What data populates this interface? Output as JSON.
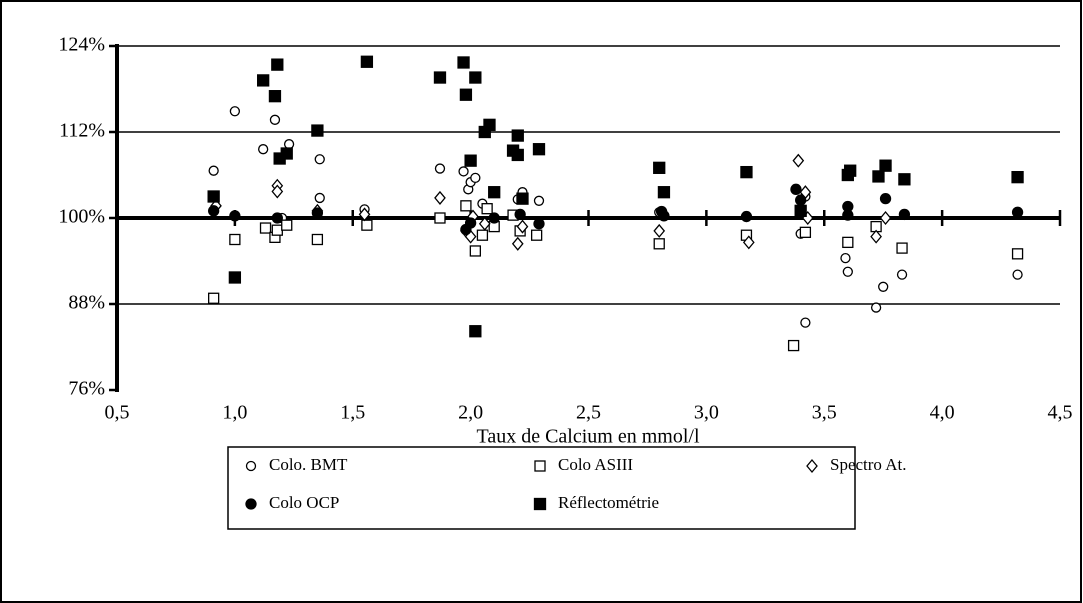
{
  "chart_data": {
    "type": "scatter",
    "xlabel": "Taux de Calcium en mmol/l",
    "xlim": [
      0.5,
      4.5
    ],
    "xticks": [
      {
        "value": 0.5,
        "label": "0,5"
      },
      {
        "value": 1,
        "label": "1,0"
      },
      {
        "value": 1.5,
        "label": "1,5"
      },
      {
        "value": 2,
        "label": "2,0"
      },
      {
        "value": 2.5,
        "label": "2,5"
      },
      {
        "value": 3,
        "label": "3,0"
      },
      {
        "value": 3.5,
        "label": "3,5"
      },
      {
        "value": 4,
        "label": "4,0"
      },
      {
        "value": 4.5,
        "label": "4,5"
      }
    ],
    "ylim": [
      76,
      124
    ],
    "yticks": [
      {
        "value": 76,
        "label": "76%"
      },
      {
        "value": 88,
        "label": "88%"
      },
      {
        "value": 100,
        "label": "100%"
      },
      {
        "value": 112,
        "label": "112%"
      },
      {
        "value": 124,
        "label": "124%"
      }
    ],
    "grid": true,
    "legend": "bottom",
    "series": [
      {
        "name": "Colo. BMT",
        "marker": "circle",
        "color": "#000000",
        "fill": "#ffffff",
        "x": [
          0.91,
          1.0,
          1.12,
          1.17,
          1.2,
          1.23,
          1.36,
          1.36,
          1.35,
          1.55,
          1.87,
          1.97,
          1.99,
          2.0,
          2.02,
          2.05,
          2.2,
          2.22,
          2.29,
          2.8,
          3.38,
          3.4,
          3.42,
          3.42,
          3.59,
          3.6,
          3.72,
          3.75,
          3.83,
          4.32
        ],
        "values": [
          106.6,
          114.9,
          109.6,
          113.7,
          100,
          110.3,
          108.2,
          102.8,
          100.5,
          101.2,
          106.9,
          106.5,
          104,
          105,
          105.6,
          102,
          102.6,
          103.6,
          102.4,
          100.8,
          104,
          97.8,
          85.4,
          103,
          94.4,
          92.5,
          87.5,
          90.4,
          92.1,
          92.1
        ]
      },
      {
        "name": "Colo ASIII",
        "marker": "square",
        "color": "#000000",
        "fill": "#ffffff",
        "x": [
          0.91,
          1.0,
          1.13,
          1.17,
          1.18,
          1.22,
          1.35,
          1.56,
          1.87,
          1.98,
          2.02,
          2.05,
          2.07,
          2.1,
          2.18,
          2.21,
          2.28,
          2.8,
          3.17,
          3.37,
          3.42,
          3.6,
          3.72,
          3.83,
          4.32
        ],
        "values": [
          88.8,
          97,
          98.6,
          97.3,
          98.3,
          99,
          97,
          99,
          100,
          101.7,
          95.4,
          97.6,
          101.3,
          98.8,
          100.4,
          98.2,
          97.6,
          96.4,
          97.6,
          82.2,
          98,
          96.6,
          98.8,
          95.8,
          95
        ]
      },
      {
        "name": "Spectro At.",
        "marker": "diamond",
        "color": "#000000",
        "fill": "#ffffff",
        "x": [
          0.92,
          1.18,
          1.18,
          1.35,
          1.55,
          1.87,
          1.98,
          2.0,
          2.01,
          2.06,
          2.2,
          2.22,
          2.8,
          3.18,
          3.39,
          3.42,
          3.43,
          3.72,
          3.76
        ],
        "values": [
          101.7,
          104.5,
          103.7,
          101,
          100.5,
          102.8,
          98.2,
          97.4,
          100.2,
          99.2,
          96.4,
          98.8,
          98.2,
          96.6,
          108,
          103.6,
          100,
          97.4,
          100
        ]
      },
      {
        "name": "Colo OCP",
        "marker": "circle",
        "color": "#000000",
        "fill": "#000000",
        "x": [
          0.91,
          1.0,
          1.18,
          1.35,
          1.98,
          2.0,
          2.1,
          2.21,
          2.29,
          2.81,
          2.82,
          3.17,
          3.38,
          3.4,
          3.6,
          3.6,
          3.76,
          3.84,
          4.32
        ],
        "values": [
          101,
          100.3,
          100,
          100.7,
          98.4,
          99.3,
          100,
          100.5,
          99.2,
          100.9,
          100.3,
          100.2,
          104,
          102.5,
          101.6,
          100.4,
          102.7,
          100.5,
          100.8
        ]
      },
      {
        "name": "Réflectométrie",
        "marker": "square",
        "color": "#000000",
        "fill": "#000000",
        "x": [
          0.91,
          1.0,
          1.12,
          1.17,
          1.18,
          1.19,
          1.22,
          1.35,
          1.56,
          1.87,
          1.97,
          1.98,
          2.0,
          2.02,
          2.02,
          2.06,
          2.08,
          2.1,
          2.18,
          2.2,
          2.2,
          2.22,
          2.29,
          2.8,
          2.82,
          3.17,
          3.4,
          3.6,
          3.61,
          3.73,
          3.76,
          3.84,
          4.32
        ],
        "values": [
          103,
          91.7,
          119.2,
          117,
          121.4,
          108.3,
          109,
          112.2,
          121.8,
          119.6,
          121.7,
          117.2,
          108,
          119.6,
          84.2,
          112,
          113,
          103.6,
          109.4,
          111.5,
          108.8,
          102.7,
          109.6,
          107,
          103.6,
          106.4,
          101,
          106,
          106.6,
          105.8,
          107.3,
          105.4,
          105.7
        ]
      }
    ]
  }
}
